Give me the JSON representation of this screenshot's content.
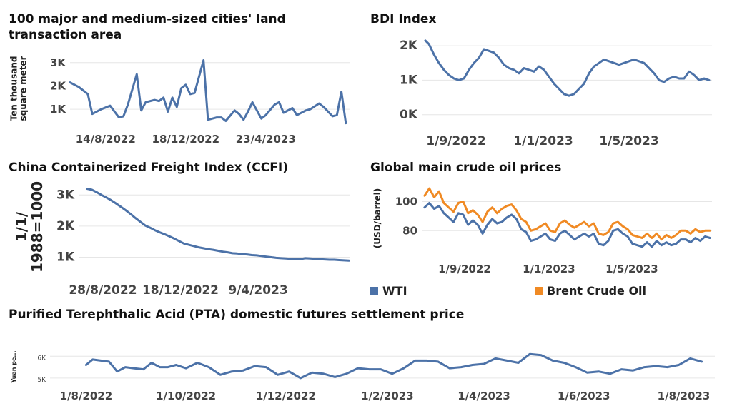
{
  "colors": {
    "blue": "#4c72a8",
    "orange": "#f08a24"
  },
  "chart_data": [
    {
      "id": "land",
      "type": "line",
      "title": "100 major and medium-sized cities' land transaction area",
      "ylabel": "Ten thousand square meter",
      "ytick_labels": [
        "1K",
        "2K",
        "3K"
      ],
      "ytick_values": [
        1000,
        2000,
        3000
      ],
      "ylim": [
        300,
        3300
      ],
      "xlim": [
        "2022-06-19",
        "2023-09-03"
      ],
      "xtick_labels": [
        "14/8/2022",
        "18/12/2022",
        "23/4/2023"
      ],
      "xtick_dates": [
        "2022-08-14",
        "2022-12-18",
        "2023-04-23"
      ],
      "series": [
        {
          "color": "#4c72a8",
          "x": [
            "2022-06-19",
            "2022-07-03",
            "2022-07-17",
            "2022-07-24",
            "2022-08-07",
            "2022-08-21",
            "2022-09-04",
            "2022-09-11",
            "2022-09-18",
            "2022-10-02",
            "2022-10-09",
            "2022-10-16",
            "2022-10-30",
            "2022-11-06",
            "2022-11-13",
            "2022-11-20",
            "2022-11-27",
            "2022-12-04",
            "2022-12-11",
            "2022-12-18",
            "2022-12-25",
            "2023-01-01",
            "2023-01-15",
            "2023-01-22",
            "2023-02-05",
            "2023-02-12",
            "2023-02-19",
            "2023-03-05",
            "2023-03-12",
            "2023-03-19",
            "2023-03-26",
            "2023-04-02",
            "2023-04-16",
            "2023-04-23",
            "2023-05-07",
            "2023-05-14",
            "2023-05-21",
            "2023-06-04",
            "2023-06-11",
            "2023-06-25",
            "2023-07-02",
            "2023-07-16",
            "2023-07-23",
            "2023-08-06",
            "2023-08-13",
            "2023-08-20",
            "2023-08-27"
          ],
          "y": [
            2150,
            1950,
            1650,
            800,
            1000,
            1150,
            650,
            700,
            1200,
            2500,
            950,
            1300,
            1400,
            1350,
            1500,
            900,
            1500,
            1100,
            1900,
            2050,
            1650,
            1700,
            3100,
            550,
            650,
            650,
            500,
            950,
            800,
            550,
            900,
            1300,
            600,
            750,
            1200,
            1300,
            850,
            1050,
            750,
            950,
            1000,
            1250,
            1100,
            700,
            750,
            1750,
            400
          ]
        }
      ]
    },
    {
      "id": "bdi",
      "type": "line",
      "title": "BDI Index",
      "ytick_labels": [
        "0K",
        "1K",
        "2K"
      ],
      "ytick_values": [
        0,
        1000,
        2000
      ],
      "ylim": [
        -150,
        2250
      ],
      "xlim": [
        "2022-07-15",
        "2023-08-25"
      ],
      "xtick_labels": [
        "1/9/2022",
        "1/1/2023",
        "1/5/2023"
      ],
      "xtick_dates": [
        "2022-09-01",
        "2023-01-01",
        "2023-05-01"
      ],
      "series": [
        {
          "color": "#4c72a8",
          "x": [
            "2022-07-20",
            "2022-07-25",
            "2022-08-01",
            "2022-08-08",
            "2022-08-15",
            "2022-08-22",
            "2022-08-29",
            "2022-09-05",
            "2022-09-12",
            "2022-09-19",
            "2022-09-26",
            "2022-10-03",
            "2022-10-10",
            "2022-10-17",
            "2022-10-24",
            "2022-10-31",
            "2022-11-07",
            "2022-11-14",
            "2022-11-21",
            "2022-11-28",
            "2022-12-05",
            "2022-12-12",
            "2022-12-19",
            "2022-12-26",
            "2023-01-02",
            "2023-01-09",
            "2023-01-16",
            "2023-01-23",
            "2023-01-30",
            "2023-02-06",
            "2023-02-13",
            "2023-02-20",
            "2023-02-27",
            "2023-03-06",
            "2023-03-13",
            "2023-03-20",
            "2023-03-27",
            "2023-04-03",
            "2023-04-10",
            "2023-04-17",
            "2023-04-24",
            "2023-05-01",
            "2023-05-08",
            "2023-05-15",
            "2023-05-22",
            "2023-05-29",
            "2023-06-05",
            "2023-06-12",
            "2023-06-19",
            "2023-06-26",
            "2023-07-03",
            "2023-07-10",
            "2023-07-17",
            "2023-07-24",
            "2023-07-31",
            "2023-08-07",
            "2023-08-14",
            "2023-08-21"
          ],
          "y": [
            2150,
            2050,
            1750,
            1500,
            1300,
            1150,
            1050,
            1000,
            1050,
            1300,
            1500,
            1650,
            1900,
            1850,
            1800,
            1650,
            1450,
            1350,
            1300,
            1200,
            1350,
            1300,
            1250,
            1400,
            1300,
            1100,
            900,
            750,
            600,
            550,
            600,
            750,
            900,
            1200,
            1400,
            1500,
            1600,
            1550,
            1500,
            1450,
            1500,
            1550,
            1600,
            1550,
            1500,
            1350,
            1200,
            1000,
            950,
            1050,
            1100,
            1050,
            1050,
            1250,
            1150,
            1000,
            1050,
            1000
          ]
        }
      ]
    },
    {
      "id": "ccfi",
      "type": "line",
      "title": "China Containerized Freight Index (CCFI)",
      "ylabel": "1/1/1988=1000",
      "ytick_labels": [
        "1K",
        "2K",
        "3K"
      ],
      "ytick_values": [
        1000,
        2000,
        3000
      ],
      "ylim": [
        600,
        3350
      ],
      "xlim": [
        "2022-07-24",
        "2023-08-20"
      ],
      "xtick_labels": [
        "28/8/2022",
        "18/12/2022",
        "9/4/2023"
      ],
      "xtick_dates": [
        "2022-08-28",
        "2022-12-18",
        "2023-04-09"
      ],
      "series": [
        {
          "color": "#4c72a8",
          "x": [
            "2022-08-05",
            "2022-08-12",
            "2022-08-19",
            "2022-08-26",
            "2022-09-02",
            "2022-09-09",
            "2022-09-16",
            "2022-09-23",
            "2022-09-30",
            "2022-10-07",
            "2022-10-14",
            "2022-10-21",
            "2022-10-28",
            "2022-11-04",
            "2022-11-11",
            "2022-11-18",
            "2022-11-25",
            "2022-12-02",
            "2022-12-09",
            "2022-12-16",
            "2022-12-23",
            "2022-12-30",
            "2023-01-06",
            "2023-01-13",
            "2023-01-20",
            "2023-01-27",
            "2023-02-03",
            "2023-02-10",
            "2023-02-17",
            "2023-02-24",
            "2023-03-03",
            "2023-03-10",
            "2023-03-17",
            "2023-03-24",
            "2023-03-31",
            "2023-04-07",
            "2023-04-14",
            "2023-04-21",
            "2023-04-28",
            "2023-05-05",
            "2023-05-12",
            "2023-05-19",
            "2023-05-26",
            "2023-06-02",
            "2023-06-09",
            "2023-06-16",
            "2023-06-23",
            "2023-06-30",
            "2023-07-07",
            "2023-07-14",
            "2023-07-21",
            "2023-07-28",
            "2023-08-04",
            "2023-08-11",
            "2023-08-18"
          ],
          "y": [
            3200,
            3170,
            3090,
            3000,
            2920,
            2830,
            2730,
            2620,
            2510,
            2390,
            2260,
            2140,
            2020,
            1950,
            1870,
            1800,
            1740,
            1670,
            1600,
            1520,
            1440,
            1400,
            1360,
            1320,
            1290,
            1260,
            1240,
            1210,
            1180,
            1160,
            1130,
            1120,
            1100,
            1090,
            1070,
            1060,
            1040,
            1020,
            1000,
            980,
            970,
            960,
            950,
            950,
            940,
            970,
            960,
            950,
            940,
            930,
            920,
            920,
            910,
            900,
            890
          ]
        }
      ]
    },
    {
      "id": "oil",
      "type": "line",
      "title": "Global main crude oil prices",
      "ylabel": "(USD/barrel)",
      "ytick_labels": [
        "80",
        "100"
      ],
      "ytick_values": [
        80,
        100
      ],
      "ylim": [
        63,
        112
      ],
      "xlim": [
        "2022-07-01",
        "2023-08-25"
      ],
      "xtick_labels": [
        "1/9/2022",
        "1/1/2023",
        "1/5/2023"
      ],
      "xtick_dates": [
        "2022-09-01",
        "2023-01-01",
        "2023-05-01"
      ],
      "legend": [
        {
          "label": "WTI",
          "color": "#4c72a8"
        },
        {
          "label": "Brent Crude Oil",
          "color": "#f08a24"
        }
      ],
      "series": [
        {
          "name": "Brent Crude Oil",
          "color": "#f08a24",
          "x": [
            "2022-07-05",
            "2022-07-12",
            "2022-07-19",
            "2022-07-26",
            "2022-08-02",
            "2022-08-09",
            "2022-08-16",
            "2022-08-23",
            "2022-08-30",
            "2022-09-06",
            "2022-09-13",
            "2022-09-20",
            "2022-09-27",
            "2022-10-04",
            "2022-10-11",
            "2022-10-18",
            "2022-10-25",
            "2022-11-01",
            "2022-11-08",
            "2022-11-15",
            "2022-11-22",
            "2022-11-29",
            "2022-12-06",
            "2022-12-13",
            "2022-12-20",
            "2022-12-27",
            "2023-01-03",
            "2023-01-10",
            "2023-01-17",
            "2023-01-24",
            "2023-01-31",
            "2023-02-07",
            "2023-02-14",
            "2023-02-21",
            "2023-02-28",
            "2023-03-07",
            "2023-03-14",
            "2023-03-21",
            "2023-03-28",
            "2023-04-04",
            "2023-04-11",
            "2023-04-18",
            "2023-04-25",
            "2023-05-02",
            "2023-05-09",
            "2023-05-16",
            "2023-05-23",
            "2023-05-30",
            "2023-06-06",
            "2023-06-13",
            "2023-06-20",
            "2023-06-27",
            "2023-07-04",
            "2023-07-11",
            "2023-07-18",
            "2023-07-25",
            "2023-08-01",
            "2023-08-08",
            "2023-08-15",
            "2023-08-22"
          ],
          "y": [
            104,
            109,
            103,
            107,
            99,
            96,
            93,
            99,
            100,
            92,
            94,
            91,
            86,
            93,
            96,
            92,
            95,
            97,
            98,
            94,
            88,
            86,
            80,
            81,
            83,
            85,
            80,
            79,
            85,
            87,
            84,
            82,
            84,
            86,
            83,
            85,
            78,
            77,
            79,
            85,
            86,
            83,
            81,
            77,
            76,
            75,
            78,
            75,
            78,
            74,
            77,
            75,
            77,
            80,
            80,
            78,
            81,
            79,
            80,
            80
          ]
        },
        {
          "name": "WTI",
          "color": "#4c72a8",
          "x": [
            "2022-07-05",
            "2022-07-12",
            "2022-07-19",
            "2022-07-26",
            "2022-08-02",
            "2022-08-09",
            "2022-08-16",
            "2022-08-23",
            "2022-08-30",
            "2022-09-06",
            "2022-09-13",
            "2022-09-20",
            "2022-09-27",
            "2022-10-04",
            "2022-10-11",
            "2022-10-18",
            "2022-10-25",
            "2022-11-01",
            "2022-11-08",
            "2022-11-15",
            "2022-11-22",
            "2022-11-29",
            "2022-12-06",
            "2022-12-13",
            "2022-12-20",
            "2022-12-27",
            "2023-01-03",
            "2023-01-10",
            "2023-01-17",
            "2023-01-24",
            "2023-01-31",
            "2023-02-07",
            "2023-02-14",
            "2023-02-21",
            "2023-02-28",
            "2023-03-07",
            "2023-03-14",
            "2023-03-21",
            "2023-03-28",
            "2023-04-04",
            "2023-04-11",
            "2023-04-18",
            "2023-04-25",
            "2023-05-02",
            "2023-05-09",
            "2023-05-16",
            "2023-05-23",
            "2023-05-30",
            "2023-06-06",
            "2023-06-13",
            "2023-06-20",
            "2023-06-27",
            "2023-07-04",
            "2023-07-11",
            "2023-07-18",
            "2023-07-25",
            "2023-08-01",
            "2023-08-08",
            "2023-08-15",
            "2023-08-22"
          ],
          "y": [
            96,
            99,
            95,
            97,
            92,
            89,
            86,
            92,
            91,
            84,
            87,
            84,
            78,
            84,
            88,
            85,
            86,
            89,
            91,
            88,
            81,
            79,
            73,
            74,
            76,
            78,
            74,
            73,
            78,
            80,
            77,
            74,
            76,
            78,
            76,
            78,
            71,
            70,
            73,
            80,
            81,
            78,
            76,
            71,
            70,
            69,
            72,
            69,
            73,
            70,
            72,
            70,
            71,
            74,
            74,
            72,
            75,
            73,
            76,
            75
          ]
        }
      ]
    },
    {
      "id": "pta",
      "type": "line",
      "title": "Purified Terephthalic Acid (PTA) domestic futures settlement price",
      "ylabel": "Yuan pe...",
      "ytick_labels": [
        "5K",
        "6K"
      ],
      "ytick_values": [
        5000,
        6000
      ],
      "ylim": [
        4800,
        6500
      ],
      "xlim": [
        "2022-07-10",
        "2023-08-20"
      ],
      "xtick_labels": [
        "1/8/2022",
        "1/10/2022",
        "1/12/2022",
        "1/2/2023",
        "1/4/2023",
        "1/6/2023",
        "1/8/2023"
      ],
      "xtick_dates": [
        "2022-08-01",
        "2022-10-01",
        "2022-12-01",
        "2023-02-01",
        "2023-04-01",
        "2023-06-01",
        "2023-08-01"
      ],
      "series": [
        {
          "color": "#4c72a8",
          "x": [
            "2022-08-01",
            "2022-08-05",
            "2022-08-10",
            "2022-08-15",
            "2022-08-20",
            "2022-08-25",
            "2022-08-30",
            "2022-09-05",
            "2022-09-10",
            "2022-09-15",
            "2022-09-20",
            "2022-09-25",
            "2022-10-01",
            "2022-10-08",
            "2022-10-15",
            "2022-10-22",
            "2022-10-29",
            "2022-11-05",
            "2022-11-12",
            "2022-11-19",
            "2022-11-26",
            "2022-12-03",
            "2022-12-10",
            "2022-12-17",
            "2022-12-24",
            "2022-12-31",
            "2023-01-07",
            "2023-01-14",
            "2023-01-21",
            "2023-01-28",
            "2023-02-04",
            "2023-02-11",
            "2023-02-18",
            "2023-02-25",
            "2023-03-04",
            "2023-03-11",
            "2023-03-18",
            "2023-03-25",
            "2023-04-01",
            "2023-04-08",
            "2023-04-15",
            "2023-04-22",
            "2023-04-29",
            "2023-05-06",
            "2023-05-13",
            "2023-05-20",
            "2023-05-27",
            "2023-06-03",
            "2023-06-10",
            "2023-06-17",
            "2023-06-24",
            "2023-07-01",
            "2023-07-08",
            "2023-07-15",
            "2023-07-22",
            "2023-07-29",
            "2023-08-05",
            "2023-08-12"
          ],
          "y": [
            5600,
            5850,
            5800,
            5750,
            5300,
            5500,
            5450,
            5400,
            5700,
            5500,
            5500,
            5600,
            5450,
            5700,
            5500,
            5150,
            5300,
            5350,
            5550,
            5500,
            5150,
            5300,
            5000,
            5250,
            5200,
            5050,
            5200,
            5450,
            5400,
            5400,
            5200,
            5450,
            5800,
            5800,
            5750,
            5450,
            5500,
            5600,
            5650,
            5900,
            5800,
            5700,
            6100,
            6050,
            5800,
            5700,
            5500,
            5250,
            5300,
            5200,
            5400,
            5350,
            5500,
            5550,
            5500,
            5600,
            5900,
            5750
          ]
        }
      ]
    }
  ]
}
